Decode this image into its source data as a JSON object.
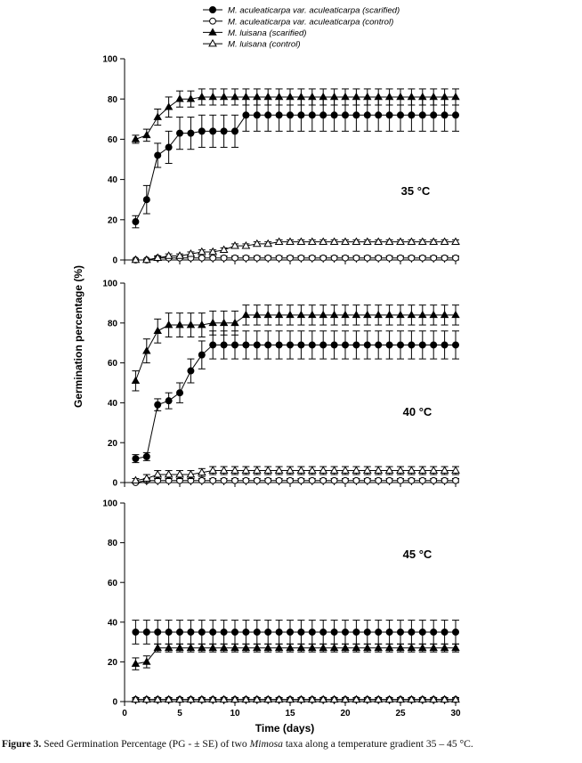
{
  "legend": [
    {
      "label": "M. aculeaticarpa var. aculeaticarpa (scarified)",
      "marker": "filled-circle"
    },
    {
      "label": "M. aculeaticarpa var. aculeaticarpa (control)",
      "marker": "open-circle"
    },
    {
      "label": "M. luisana (scarified)",
      "marker": "filled-triangle"
    },
    {
      "label": "M. luisana (control)",
      "marker": "open-triangle"
    }
  ],
  "ylabel": "Germination percentage (%)",
  "xlabel": "Time (days)",
  "x_ticks": [
    "0",
    "5",
    "10",
    "15",
    "20",
    "25",
    "30"
  ],
  "y_ticks": [
    "0",
    "20",
    "40",
    "60",
    "80",
    "100"
  ],
  "caption": {
    "label": "Figure 3.",
    "text_before": " Seed Germination Percentage (PG - ± SE) of two ",
    "italic": "Mimosa",
    "text_after": " taxa along a temperature gradient 35 – 45 °C."
  },
  "chart_data": [
    {
      "type": "line",
      "title": "35 °C",
      "xlim": [
        0,
        30
      ],
      "ylim": [
        0,
        100
      ],
      "x": [
        1,
        2,
        3,
        4,
        5,
        6,
        7,
        8,
        9,
        10,
        11,
        12,
        13,
        14,
        15,
        16,
        17,
        18,
        19,
        20,
        21,
        22,
        23,
        24,
        25,
        26,
        27,
        28,
        29,
        30
      ],
      "series": [
        {
          "name": "M. aculeaticarpa var. aculeaticarpa (scarified)",
          "marker": "filled-circle",
          "values": [
            19,
            30,
            52,
            56,
            63,
            63,
            64,
            64,
            64,
            64,
            72,
            72,
            72,
            72,
            72,
            72,
            72,
            72,
            72,
            72,
            72,
            72,
            72,
            72,
            72,
            72,
            72,
            72,
            72,
            72
          ],
          "se": [
            3,
            7,
            6,
            8,
            8,
            8,
            8,
            8,
            8,
            8,
            8,
            8,
            8,
            8,
            8,
            8,
            8,
            8,
            8,
            8,
            8,
            8,
            8,
            8,
            8,
            8,
            8,
            8,
            8,
            8
          ]
        },
        {
          "name": "M. aculeaticarpa var. aculeaticarpa (control)",
          "marker": "open-circle",
          "values": [
            0,
            0,
            1,
            1,
            1,
            1,
            1,
            1,
            1,
            1,
            1,
            1,
            1,
            1,
            1,
            1,
            1,
            1,
            1,
            1,
            1,
            1,
            1,
            1,
            1,
            1,
            1,
            1,
            1,
            1
          ],
          "se": [
            0,
            0,
            1,
            1,
            1,
            1,
            1,
            1,
            1,
            1,
            1,
            1,
            1,
            1,
            1,
            1,
            1,
            1,
            1,
            1,
            1,
            1,
            1,
            1,
            1,
            1,
            1,
            1,
            1,
            1
          ]
        },
        {
          "name": "M. luisana (scarified)",
          "marker": "filled-triangle",
          "values": [
            60,
            62,
            71,
            76,
            80,
            80,
            81,
            81,
            81,
            81,
            81,
            81,
            81,
            81,
            81,
            81,
            81,
            81,
            81,
            81,
            81,
            81,
            81,
            81,
            81,
            81,
            81,
            81,
            81,
            81
          ],
          "se": [
            2,
            3,
            4,
            5,
            4,
            4,
            4,
            4,
            4,
            4,
            4,
            4,
            4,
            4,
            4,
            4,
            4,
            4,
            4,
            4,
            4,
            4,
            4,
            4,
            4,
            4,
            4,
            4,
            4,
            4
          ]
        },
        {
          "name": "M. luisana (control)",
          "marker": "open-triangle",
          "values": [
            0,
            0,
            1,
            2,
            2,
            3,
            4,
            4,
            5,
            7,
            7,
            8,
            8,
            9,
            9,
            9,
            9,
            9,
            9,
            9,
            9,
            9,
            9,
            9,
            9,
            9,
            9,
            9,
            9,
            9
          ],
          "se": [
            0,
            0,
            1,
            1,
            1,
            1,
            1,
            1,
            1,
            1,
            1,
            1,
            1,
            1,
            1,
            1,
            1,
            1,
            1,
            1,
            1,
            1,
            1,
            1,
            1,
            1,
            1,
            1,
            1,
            1
          ]
        }
      ]
    },
    {
      "type": "line",
      "title": "40 °C",
      "xlim": [
        0,
        30
      ],
      "ylim": [
        0,
        100
      ],
      "x": [
        1,
        2,
        3,
        4,
        5,
        6,
        7,
        8,
        9,
        10,
        11,
        12,
        13,
        14,
        15,
        16,
        17,
        18,
        19,
        20,
        21,
        22,
        23,
        24,
        25,
        26,
        27,
        28,
        29,
        30
      ],
      "series": [
        {
          "name": "M. aculeaticarpa var. aculeaticarpa (scarified)",
          "marker": "filled-circle",
          "values": [
            12,
            13,
            39,
            41,
            45,
            56,
            64,
            69,
            69,
            69,
            69,
            69,
            69,
            69,
            69,
            69,
            69,
            69,
            69,
            69,
            69,
            69,
            69,
            69,
            69,
            69,
            69,
            69,
            69,
            69
          ],
          "se": [
            2,
            2,
            3,
            4,
            5,
            6,
            7,
            7,
            7,
            7,
            7,
            7,
            7,
            7,
            7,
            7,
            7,
            7,
            7,
            7,
            7,
            7,
            7,
            7,
            7,
            7,
            7,
            7,
            7,
            7
          ]
        },
        {
          "name": "M. aculeaticarpa var. aculeaticarpa (control)",
          "marker": "open-circle",
          "values": [
            0,
            1,
            1,
            1,
            1,
            1,
            1,
            1,
            1,
            1,
            1,
            1,
            1,
            1,
            1,
            1,
            1,
            1,
            1,
            1,
            1,
            1,
            1,
            1,
            1,
            1,
            1,
            1,
            1,
            1
          ],
          "se": [
            0,
            1,
            1,
            1,
            1,
            1,
            1,
            1,
            1,
            1,
            1,
            1,
            1,
            1,
            1,
            1,
            1,
            1,
            1,
            1,
            1,
            1,
            1,
            1,
            1,
            1,
            1,
            1,
            1,
            1
          ]
        },
        {
          "name": "M. luisana (scarified)",
          "marker": "filled-triangle",
          "values": [
            51,
            66,
            76,
            79,
            79,
            79,
            79,
            80,
            80,
            80,
            84,
            84,
            84,
            84,
            84,
            84,
            84,
            84,
            84,
            84,
            84,
            84,
            84,
            84,
            84,
            84,
            84,
            84,
            84,
            84
          ],
          "se": [
            5,
            6,
            6,
            6,
            6,
            6,
            6,
            6,
            6,
            6,
            5,
            5,
            5,
            5,
            5,
            5,
            5,
            5,
            5,
            5,
            5,
            5,
            5,
            5,
            5,
            5,
            5,
            5,
            5,
            5
          ]
        },
        {
          "name": "M. luisana (control)",
          "marker": "open-triangle",
          "values": [
            1,
            2,
            4,
            4,
            4,
            4,
            5,
            6,
            6,
            6,
            6,
            6,
            6,
            6,
            6,
            6,
            6,
            6,
            6,
            6,
            6,
            6,
            6,
            6,
            6,
            6,
            6,
            6,
            6,
            6
          ],
          "se": [
            1,
            2,
            2,
            2,
            2,
            2,
            2,
            2,
            2,
            2,
            2,
            2,
            2,
            2,
            2,
            2,
            2,
            2,
            2,
            2,
            2,
            2,
            2,
            2,
            2,
            2,
            2,
            2,
            2,
            2
          ]
        }
      ]
    },
    {
      "type": "line",
      "title": "45 °C",
      "xlim": [
        0,
        30
      ],
      "ylim": [
        0,
        100
      ],
      "x": [
        1,
        2,
        3,
        4,
        5,
        6,
        7,
        8,
        9,
        10,
        11,
        12,
        13,
        14,
        15,
        16,
        17,
        18,
        19,
        20,
        21,
        22,
        23,
        24,
        25,
        26,
        27,
        28,
        29,
        30
      ],
      "series": [
        {
          "name": "M. aculeaticarpa var. aculeaticarpa (scarified)",
          "marker": "filled-circle",
          "values": [
            35,
            35,
            35,
            35,
            35,
            35,
            35,
            35,
            35,
            35,
            35,
            35,
            35,
            35,
            35,
            35,
            35,
            35,
            35,
            35,
            35,
            35,
            35,
            35,
            35,
            35,
            35,
            35,
            35,
            35
          ],
          "se": [
            6,
            6,
            6,
            6,
            6,
            6,
            6,
            6,
            6,
            6,
            6,
            6,
            6,
            6,
            6,
            6,
            6,
            6,
            6,
            6,
            6,
            6,
            6,
            6,
            6,
            6,
            6,
            6,
            6,
            6
          ]
        },
        {
          "name": "M. aculeaticarpa var. aculeaticarpa (control)",
          "marker": "open-circle",
          "values": [
            1,
            1,
            1,
            1,
            1,
            1,
            1,
            1,
            1,
            1,
            1,
            1,
            1,
            1,
            1,
            1,
            1,
            1,
            1,
            1,
            1,
            1,
            1,
            1,
            1,
            1,
            1,
            1,
            1,
            1
          ],
          "se": [
            1,
            1,
            1,
            1,
            1,
            1,
            1,
            1,
            1,
            1,
            1,
            1,
            1,
            1,
            1,
            1,
            1,
            1,
            1,
            1,
            1,
            1,
            1,
            1,
            1,
            1,
            1,
            1,
            1,
            1
          ]
        },
        {
          "name": "M. luisana (scarified)",
          "marker": "filled-triangle",
          "values": [
            19,
            20,
            27,
            27,
            27,
            27,
            27,
            27,
            27,
            27,
            27,
            27,
            27,
            27,
            27,
            27,
            27,
            27,
            27,
            27,
            27,
            27,
            27,
            27,
            27,
            27,
            27,
            27,
            27,
            27
          ],
          "se": [
            3,
            3,
            2,
            2,
            2,
            2,
            2,
            2,
            2,
            2,
            2,
            2,
            2,
            2,
            2,
            2,
            2,
            2,
            2,
            2,
            2,
            2,
            2,
            2,
            2,
            2,
            2,
            2,
            2,
            2
          ]
        },
        {
          "name": "M. luisana (control)",
          "marker": "open-triangle",
          "values": [
            1,
            1,
            1,
            1,
            1,
            1,
            1,
            1,
            1,
            1,
            1,
            1,
            1,
            1,
            1,
            1,
            1,
            1,
            1,
            1,
            1,
            1,
            1,
            1,
            1,
            1,
            1,
            1,
            1,
            1
          ],
          "se": [
            1,
            1,
            1,
            1,
            1,
            1,
            1,
            1,
            1,
            1,
            1,
            1,
            1,
            1,
            1,
            1,
            1,
            1,
            1,
            1,
            1,
            1,
            1,
            1,
            1,
            1,
            1,
            1,
            1,
            1
          ]
        }
      ]
    }
  ]
}
